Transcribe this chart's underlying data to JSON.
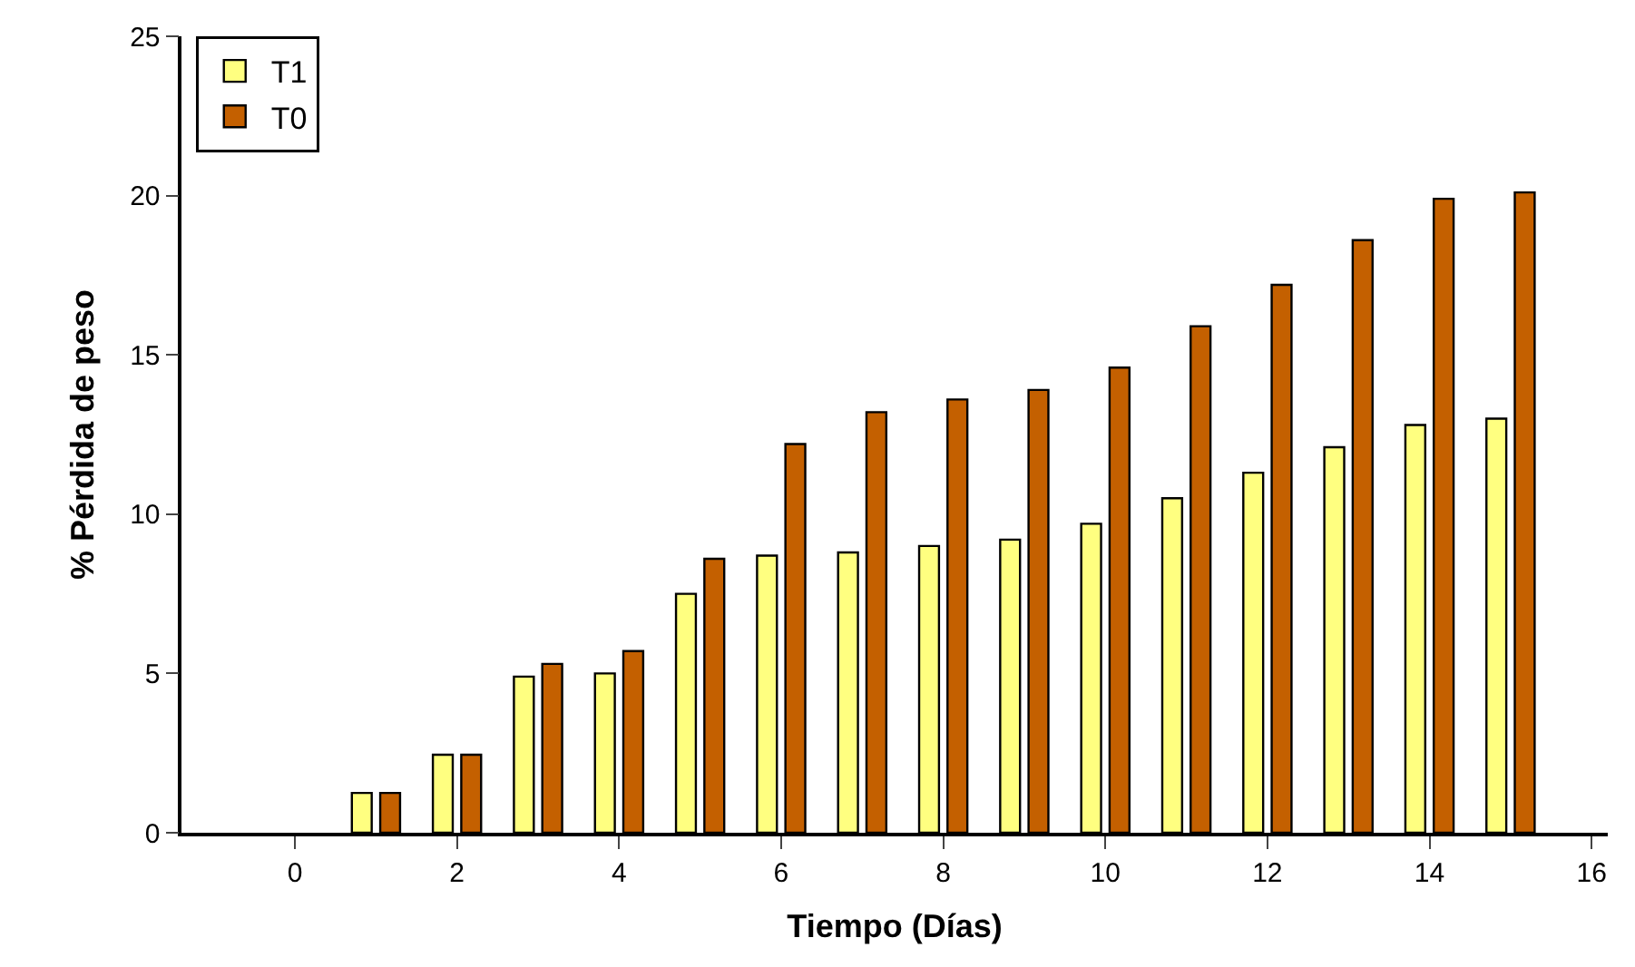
{
  "chart_data": {
    "type": "bar",
    "xlabel": "Tiempo (Días)",
    "ylabel": "% Pérdida de peso",
    "x": [
      1,
      2,
      3,
      4,
      5,
      6,
      7,
      8,
      9,
      10,
      11,
      12,
      13,
      14,
      15
    ],
    "series": [
      {
        "name": "T1",
        "color": "#ffff80",
        "values": [
          1.25,
          2.45,
          4.9,
          5.0,
          7.5,
          8.7,
          8.8,
          9.0,
          9.2,
          9.7,
          10.5,
          11.3,
          12.1,
          12.8,
          13.0
        ]
      },
      {
        "name": "T0",
        "color": "#c46000",
        "values": [
          1.25,
          2.45,
          5.3,
          5.7,
          8.6,
          12.2,
          13.2,
          13.6,
          13.9,
          14.6,
          15.9,
          17.2,
          18.6,
          19.9,
          20.1
        ]
      }
    ],
    "xlim": [
      -1.4,
      16.2
    ],
    "xticks": [
      0,
      2,
      4,
      6,
      8,
      10,
      12,
      14,
      16
    ],
    "ylim": [
      0,
      25
    ],
    "yticks": [
      0,
      5,
      10,
      15,
      20,
      25
    ],
    "legend": "top left"
  }
}
